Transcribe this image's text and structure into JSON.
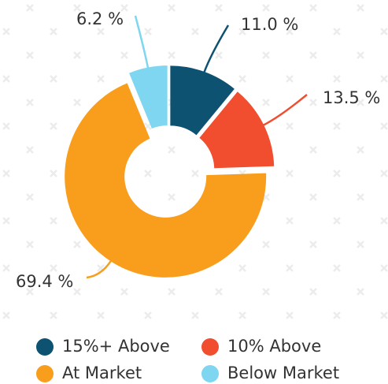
{
  "chart_data": {
    "type": "donut",
    "categories": [
      "15%+ Above",
      "10% Above",
      "At Market",
      "Below Market"
    ],
    "values": [
      11.0,
      13.5,
      69.4,
      6.2
    ],
    "value_labels": [
      "11.0 %",
      "13.5 %",
      "69.4 %",
      "6.2 %"
    ],
    "colors": [
      "#0e5272",
      "#f04e2f",
      "#f99d1c",
      "#7ed6f0"
    ]
  }
}
